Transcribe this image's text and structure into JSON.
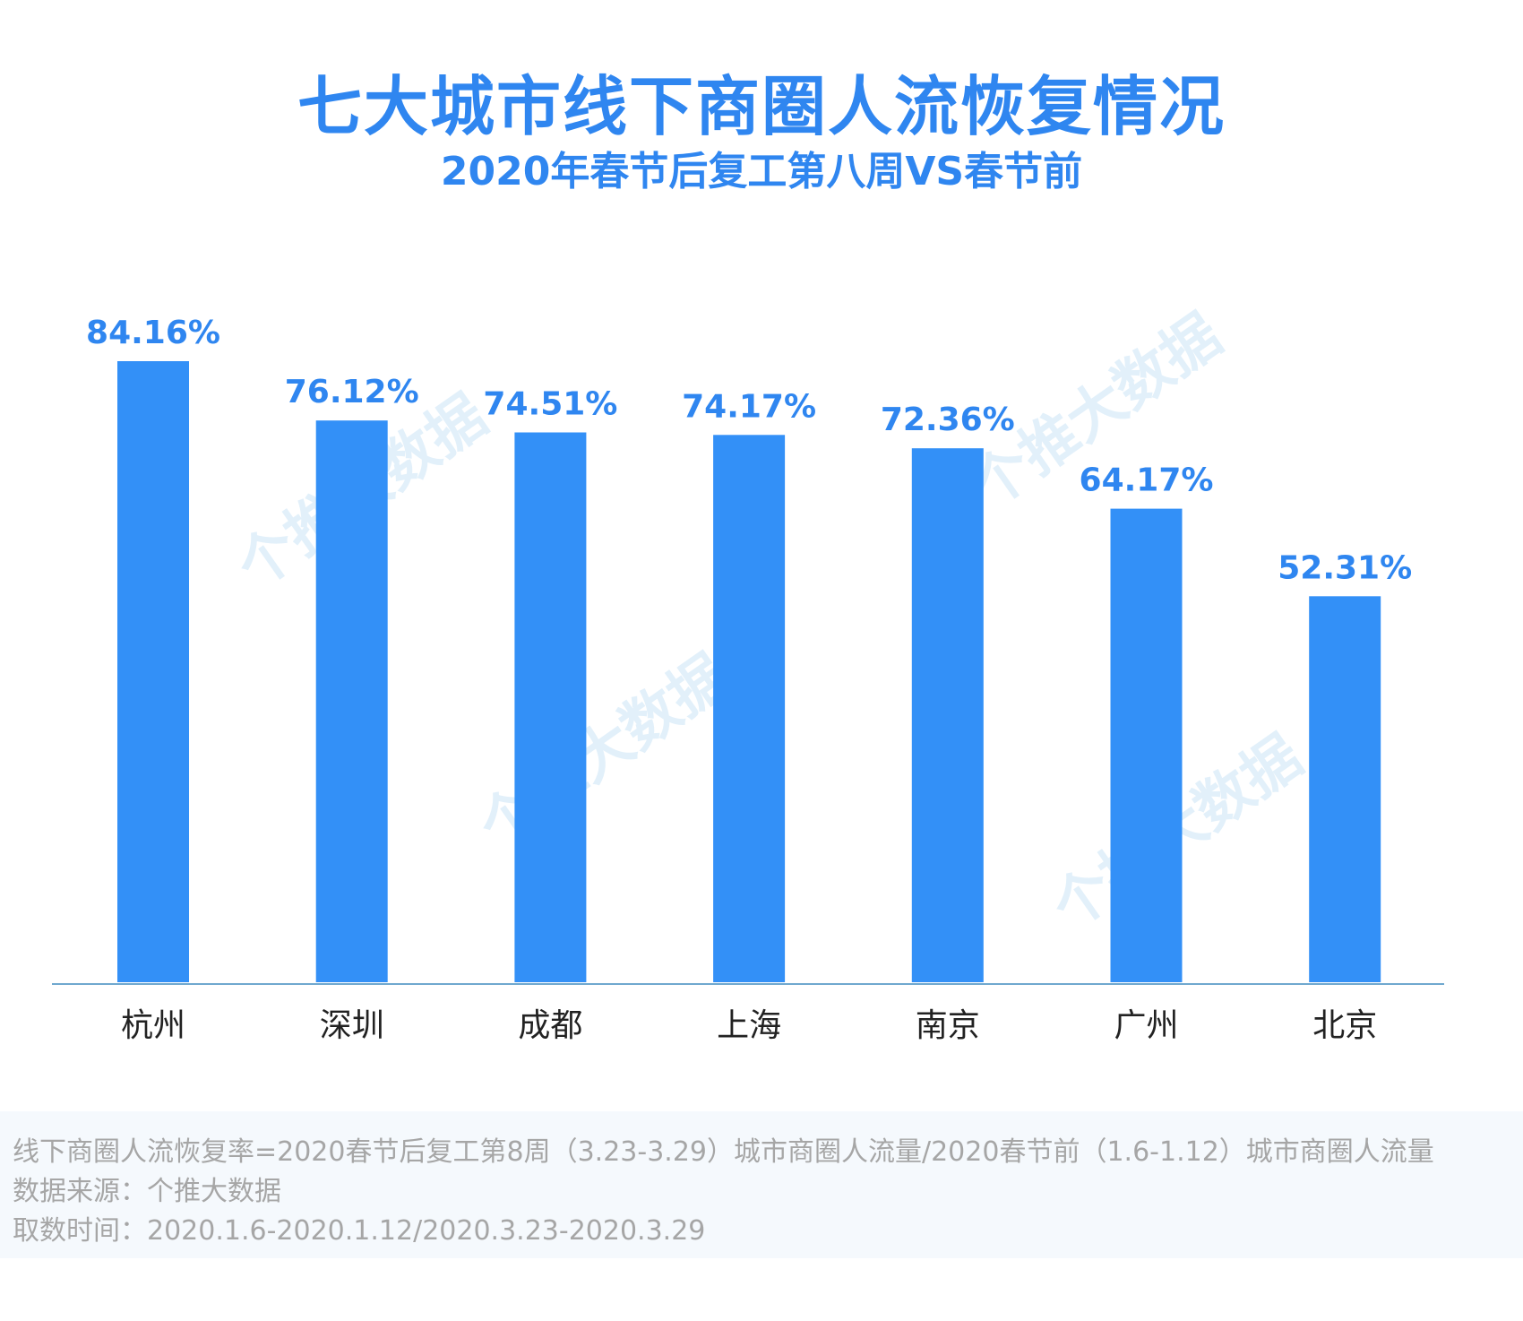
{
  "title": "七大城市线下商圈人流恢复情况",
  "subtitle": "2020年春节后复工第八周VS春节前",
  "watermark_text": "个推大数据",
  "colors": {
    "bar": "#3390f7",
    "title": "#2f86f0",
    "label": "#2f86f0",
    "axis": "#6fa8cf",
    "footer_text": "#a6a6a6",
    "footer_bg": "#f5f9fd"
  },
  "chart_data": {
    "type": "bar",
    "categories": [
      "杭州",
      "深圳",
      "成都",
      "上海",
      "南京",
      "广州",
      "北京"
    ],
    "values": [
      84.16,
      76.12,
      74.51,
      74.17,
      72.36,
      64.17,
      52.31
    ],
    "value_labels": [
      "84.16%",
      "76.12%",
      "74.51%",
      "74.17%",
      "72.36%",
      "64.17%",
      "52.31%"
    ],
    "title": "七大城市线下商圈人流恢复情况",
    "subtitle": "2020年春节后复工第八周VS春节前",
    "xlabel": "",
    "ylabel": "",
    "ylim": [
      0,
      84.16
    ],
    "grid": false,
    "legend": "none"
  },
  "footer": {
    "line1": "线下商圈人流恢复率=2020春节后复工第8周（3.23-3.29）城市商圈人流量/2020春节前（1.6-1.12）城市商圈人流量",
    "line2": "数据来源：个推大数据",
    "line3": "取数时间：2020.1.6-2020.1.12/2020.3.23-2020.3.29"
  }
}
